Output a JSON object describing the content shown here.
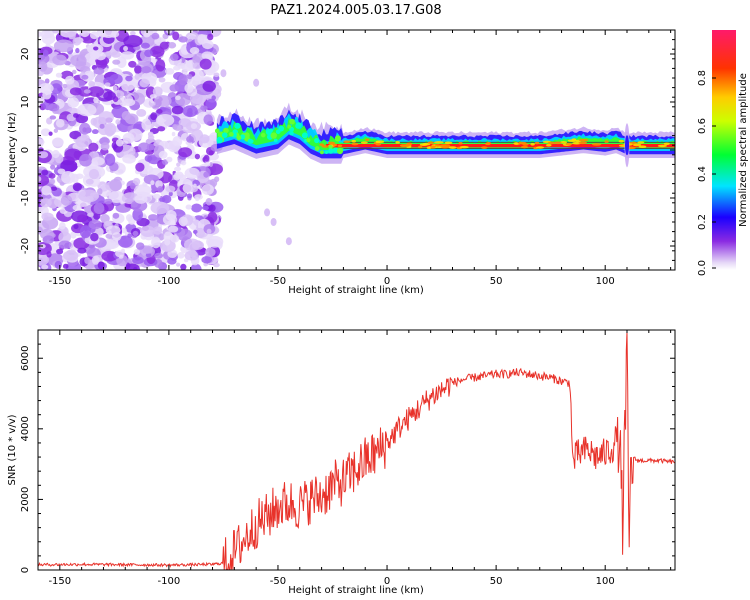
{
  "title": "PAZ1.2024.005.03.17.G08",
  "chart_data": [
    {
      "type": "heatmap",
      "xlabel": "Height of straight line (km)",
      "ylabel": "Frequency (Hz)",
      "xlim": [
        -160,
        132
      ],
      "ylim": [
        -25,
        25
      ],
      "x_ticks": [
        -150,
        -100,
        -50,
        0,
        50,
        100
      ],
      "y_ticks": [
        -20,
        -10,
        0,
        10,
        20
      ],
      "colorbar": {
        "label": "Normalized spectral amplitude",
        "range": [
          0,
          1
        ],
        "ticks": [
          0.0,
          0.2,
          0.4,
          0.6,
          0.8
        ],
        "colormap": [
          "#e8dcf8",
          "#8a2be2",
          "#0000ff",
          "#00e5ff",
          "#00ff00",
          "#ffff00",
          "#ff8800",
          "#ff0000",
          "#ff1493"
        ]
      },
      "noise_region_x": [
        -160,
        -78
      ],
      "ridge": {
        "x": [
          -78,
          -70,
          -60,
          -50,
          -45,
          -40,
          -35,
          -30,
          -25,
          -20,
          -10,
          0,
          10,
          30,
          50,
          70,
          80,
          90,
          100,
          105,
          110,
          115,
          132
        ],
        "freq": [
          3,
          4,
          2,
          3,
          5,
          4,
          2,
          1,
          1,
          1,
          2,
          1,
          1,
          1,
          1,
          1,
          1.5,
          2,
          1.5,
          2,
          1,
          1,
          1
        ]
      }
    },
    {
      "type": "line",
      "xlabel": "Height of straight line (km)",
      "ylabel": "SNR (10 * v/v)",
      "xlim": [
        -160,
        132
      ],
      "ylim": [
        0,
        6800
      ],
      "x_ticks": [
        -150,
        -100,
        -50,
        0,
        50,
        100
      ],
      "y_ticks": [
        0,
        2000,
        4000,
        6000
      ],
      "color": "#e8322a",
      "series": [
        {
          "x": [
            -160,
            -140,
            -120,
            -100,
            -80,
            -75,
            -70,
            -65,
            -60,
            -55,
            -50,
            -45,
            -40,
            -35,
            -30,
            -25,
            -20,
            -15,
            -10,
            -5,
            0,
            5,
            10,
            15,
            20,
            25,
            30,
            35,
            40,
            45,
            50,
            55,
            60,
            65,
            70,
            75,
            80,
            84,
            85,
            88,
            92,
            96,
            100,
            104,
            106,
            108,
            110,
            111,
            112,
            115,
            120,
            125,
            132
          ],
          "values": [
            150,
            160,
            150,
            140,
            160,
            200,
            500,
            900,
            1300,
            1500,
            1800,
            1900,
            1800,
            2000,
            2100,
            2400,
            2500,
            2800,
            3100,
            3300,
            3600,
            4000,
            4300,
            4600,
            4900,
            5100,
            5300,
            5400,
            5450,
            5500,
            5550,
            5550,
            5600,
            5550,
            5500,
            5450,
            5350,
            5300,
            3100,
            3300,
            3400,
            3200,
            3300,
            3500,
            4000,
            1500,
            5800,
            600,
            3200,
            3100,
            3100,
            3100,
            3050
          ]
        }
      ]
    }
  ]
}
